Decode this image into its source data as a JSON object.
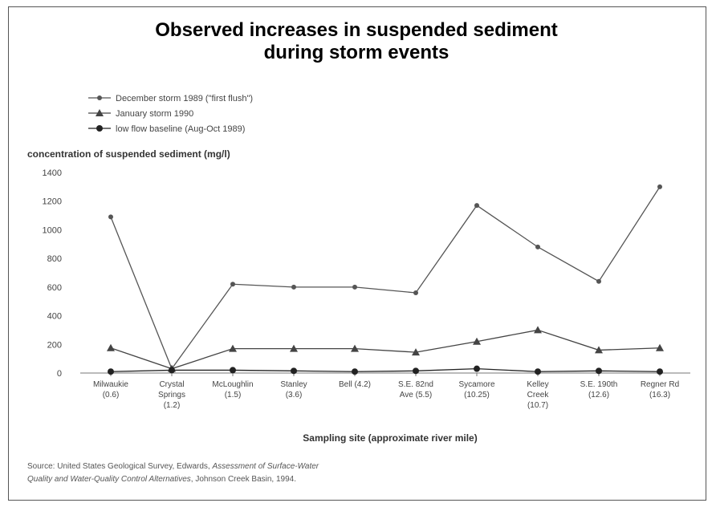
{
  "chart_data": {
    "type": "line",
    "title_lines": [
      "Observed increases in suspended sediment",
      "during storm events"
    ],
    "ylabel": "concentration of suspended sediment (mg/l)",
    "xlabel": "Sampling site (approximate river mile)",
    "ylim": [
      0,
      1400
    ],
    "yticks": [
      "0",
      "200",
      "400",
      "600",
      "800",
      "1000",
      "1200",
      "1400"
    ],
    "categories": [
      [
        "Milwaukie",
        "(0.6)"
      ],
      [
        "Crystal",
        "Springs",
        "(1.2)"
      ],
      [
        "McLoughlin",
        "(1.5)"
      ],
      [
        "Stanley",
        "(3.6)"
      ],
      [
        "Bell (4.2)"
      ],
      [
        "S.E. 82nd",
        "Ave (5.5)"
      ],
      [
        "Sycamore",
        "(10.25)"
      ],
      [
        "Kelley",
        "Creek",
        "(10.7)"
      ],
      [
        "S.E. 190th",
        "(12.6)"
      ],
      [
        "Regner Rd",
        "(16.3)"
      ]
    ],
    "series": [
      {
        "name": "December storm 1989 (\"first flush\")",
        "marker": "circle-small",
        "color": "#555555",
        "values": [
          1090,
          30,
          620,
          600,
          600,
          560,
          1170,
          880,
          640,
          1300
        ]
      },
      {
        "name": "January storm 1990",
        "marker": "triangle",
        "color": "#444444",
        "values": [
          175,
          30,
          170,
          170,
          170,
          145,
          220,
          300,
          160,
          175
        ]
      },
      {
        "name": "low flow baseline (Aug-Oct 1989)",
        "marker": "circle",
        "color": "#222222",
        "values": [
          10,
          20,
          20,
          15,
          10,
          15,
          30,
          10,
          15,
          10
        ]
      }
    ],
    "grid": false,
    "legend_position": "top-left"
  },
  "source": {
    "line1_plain": "Source: United States Geological Survey, Edwards, ",
    "line1_italic": "Assessment of Surface-Water",
    "line2_italic": "Quality and Water-Quality Control Alternatives",
    "line2_plain": ", Johnson Creek Basin, 1994."
  }
}
